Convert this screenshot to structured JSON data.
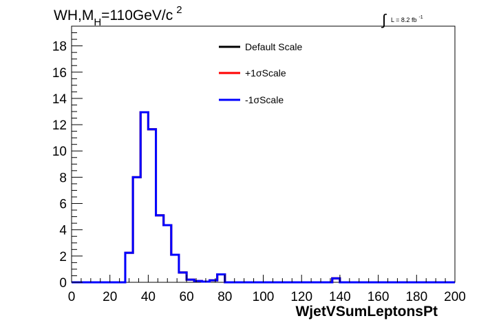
{
  "chart_data": {
    "type": "line",
    "title": {
      "prefix": "WH,M",
      "subscript": "H",
      "suffix": "=110GeV/c",
      "superscript": "2"
    },
    "lumi": {
      "integral": "∫",
      "text": "L = 8.2 fb",
      "superscript": "-1"
    },
    "xlabel": "WjetVSumLeptonsPt",
    "ylabel": "",
    "xlim": [
      0,
      200
    ],
    "ylim": [
      0,
      19.5
    ],
    "x_ticks": [
      "0",
      "20",
      "40",
      "60",
      "80",
      "100",
      "120",
      "140",
      "160",
      "180",
      "200"
    ],
    "y_ticks": [
      "0",
      "2",
      "4",
      "6",
      "8",
      "10",
      "12",
      "14",
      "16",
      "18"
    ],
    "legend_position": "top-center",
    "bin_edges": [
      0,
      4,
      8,
      12,
      16,
      20,
      24,
      28,
      32,
      36,
      40,
      44,
      48,
      52,
      56,
      60,
      64,
      68,
      72,
      76,
      80,
      84,
      88,
      92,
      96,
      100,
      104,
      108,
      112,
      116,
      120,
      124,
      128,
      132,
      136,
      140,
      144,
      148,
      152,
      156,
      160,
      164,
      168,
      172,
      176,
      180,
      184,
      188,
      192,
      196,
      200
    ],
    "series": [
      {
        "name": "Default Scale",
        "color": "#000000",
        "values": [
          0,
          0,
          0,
          0,
          0,
          0,
          0,
          2.25,
          8.0,
          12.95,
          11.65,
          5.1,
          4.35,
          2.1,
          0.75,
          0.2,
          0.1,
          0.05,
          0.15,
          0.6,
          0,
          0,
          0,
          0,
          0,
          0,
          0,
          0,
          0,
          0,
          0,
          0,
          0,
          0,
          0.3,
          0,
          0,
          0,
          0,
          0,
          0,
          0,
          0,
          0,
          0,
          0,
          0,
          0,
          0,
          0
        ]
      },
      {
        "name": "+1σScale",
        "color": "#ff0000",
        "values": [
          0,
          0,
          0,
          0,
          0,
          0,
          0,
          2.25,
          8.0,
          12.95,
          11.65,
          5.1,
          4.35,
          2.1,
          0.75,
          0.2,
          0.1,
          0.05,
          0.15,
          0.6,
          0,
          0,
          0,
          0,
          0,
          0,
          0,
          0,
          0,
          0,
          0,
          0,
          0,
          0,
          0.3,
          0,
          0,
          0,
          0,
          0,
          0,
          0,
          0,
          0,
          0,
          0,
          0,
          0,
          0,
          0
        ]
      },
      {
        "name": "-1σScale",
        "color": "#0000ff",
        "values": [
          0,
          0,
          0,
          0,
          0,
          0,
          0,
          2.25,
          8.0,
          12.95,
          11.65,
          5.1,
          4.35,
          2.1,
          0.75,
          0.2,
          0.1,
          0.05,
          0.15,
          0.6,
          0,
          0,
          0,
          0,
          0,
          0,
          0,
          0,
          0,
          0,
          0,
          0,
          0,
          0,
          0.3,
          0,
          0,
          0,
          0,
          0,
          0,
          0,
          0,
          0,
          0,
          0,
          0,
          0,
          0,
          0
        ]
      }
    ]
  }
}
